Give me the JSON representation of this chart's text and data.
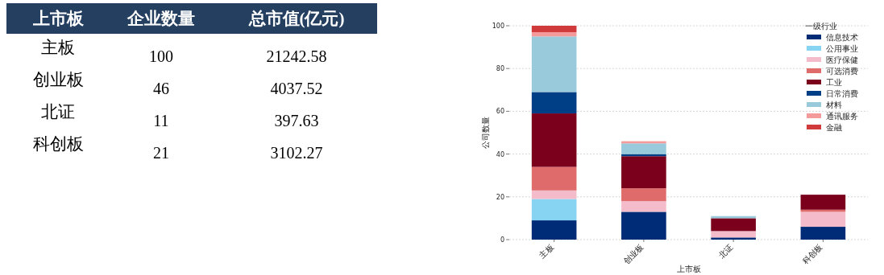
{
  "chart_data": [
    {
      "type": "other",
      "xlabel": "上市板",
      "categories": [
        "主板",
        "创业板",
        "北证",
        "科创板"
      ],
      "data_labels": true,
      "series": [
        {
          "name": "企业数量",
          "values": [
            100,
            46,
            11,
            21
          ]
        },
        {
          "name": "总市值(亿元)",
          "values": [
            21242.58,
            4037.52,
            397.63,
            3102.27
          ]
        }
      ]
    },
    {
      "type": "bar",
      "stacked": true,
      "categories": [
        "主板",
        "创业板",
        "北证",
        "科创板"
      ],
      "xlabel": "上市板",
      "ylabel": "公司数量",
      "legend_title": "一级行业",
      "legend": "top right",
      "grid": "y",
      "ylim": [
        0,
        100
      ],
      "yticks": [
        0,
        20,
        40,
        60,
        80,
        100
      ],
      "series": [
        {
          "name": "信息技术",
          "color": "#002c77",
          "values": [
            9,
            13,
            1,
            6
          ]
        },
        {
          "name": "公用事业",
          "color": "#87d3f2",
          "values": [
            10,
            0,
            0,
            0
          ]
        },
        {
          "name": "医疗保健",
          "color": "#f4bccb",
          "values": [
            4,
            5,
            3,
            7
          ]
        },
        {
          "name": "可选消费",
          "color": "#e06b6b",
          "values": [
            11,
            6,
            0,
            1
          ]
        },
        {
          "name": "工业",
          "color": "#7b001c",
          "values": [
            25,
            15,
            6,
            7
          ]
        },
        {
          "name": "日常消费",
          "color": "#003f85",
          "values": [
            10,
            1,
            0,
            0
          ]
        },
        {
          "name": "材料",
          "color": "#99cadb",
          "values": [
            26,
            5,
            1,
            0
          ]
        },
        {
          "name": "通讯服务",
          "color": "#f59a9a",
          "values": [
            2,
            1,
            0,
            0
          ]
        },
        {
          "name": "金融",
          "color": "#d13a3a",
          "values": [
            3,
            0,
            0,
            0
          ]
        }
      ]
    }
  ]
}
